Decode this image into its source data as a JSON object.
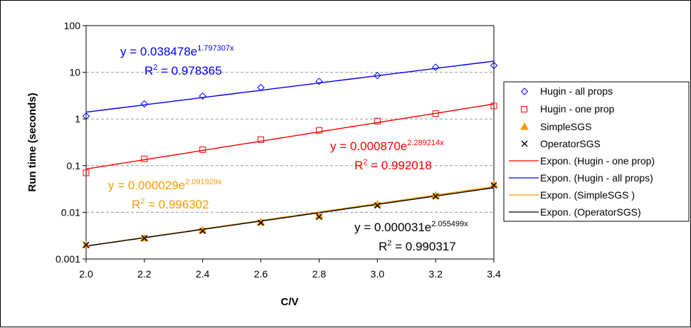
{
  "colors": {
    "all_props": "#0000ff",
    "one_prop": "#ff0000",
    "simple": "#ff9900",
    "operator": "#000000",
    "grid": "#999999"
  },
  "chart_data": {
    "type": "scatter",
    "xlabel": "C/V",
    "ylabel": "Run time (seconds)",
    "xlim": [
      2.0,
      3.4
    ],
    "ylim": [
      0.001,
      100
    ],
    "yscale": "log",
    "grid": "horizontal dashed",
    "legend_position": "right",
    "x_ticks": [
      "2.0",
      "2.2",
      "2.4",
      "2.6",
      "2.8",
      "3.0",
      "3.2",
      "3.4"
    ],
    "y_ticks": [
      "0.001",
      "0.01",
      "0.1",
      "1",
      "10",
      "100"
    ],
    "x": [
      2.0,
      2.2,
      2.4,
      2.6,
      2.8,
      3.0,
      3.2,
      3.4
    ],
    "series": [
      {
        "name": "Hugin - all props",
        "marker": "diamond",
        "color_key": "all_props",
        "values": [
          1.15,
          2.1,
          3.1,
          4.7,
          6.4,
          8.5,
          12.8,
          14.0
        ]
      },
      {
        "name": "Hugin - one prop",
        "marker": "square",
        "color_key": "one_prop",
        "values": [
          0.07,
          0.14,
          0.22,
          0.36,
          0.57,
          0.9,
          1.3,
          1.9
        ]
      },
      {
        "name": "SimpleSGS",
        "marker": "triangle",
        "color_key": "simple",
        "values": [
          0.002,
          0.0028,
          0.0042,
          0.0062,
          0.0085,
          0.015,
          0.023,
          0.04
        ]
      },
      {
        "name": "OperatorSGS",
        "marker": "x",
        "color_key": "operator",
        "values": [
          0.002,
          0.0028,
          0.004,
          0.006,
          0.008,
          0.014,
          0.022,
          0.038
        ]
      }
    ],
    "trendlines": [
      {
        "name": "Expon. (Hugin - one prop)",
        "color_key": "one_prop",
        "a": 0.00087,
        "b": 2.289214,
        "eq_coef": "y = 0.000870e",
        "eq_exp": "2.289214x",
        "r2_value": " = 0.992018"
      },
      {
        "name": "Expon. (Hugin - all props)",
        "color_key": "all_props",
        "a": 0.038478,
        "b": 1.797307,
        "eq_coef": "y = 0.038478e",
        "eq_exp": "1.797307x",
        "r2_value": " = 0.978365"
      },
      {
        "name": "Expon. (SimpleSGS )",
        "color_key": "simple",
        "a": 2.9e-05,
        "b": 2.091929,
        "eq_coef": "y = 0.000029e",
        "eq_exp": "2.091929x",
        "r2_value": " = 0.996302"
      },
      {
        "name": "Expon. (OperatorSGS)",
        "color_key": "operator",
        "a": 3.1e-05,
        "b": 2.055499,
        "eq_coef": "y = 0.000031e",
        "eq_exp": "2.055499x",
        "r2_value": " = 0.990317"
      }
    ],
    "r2_label": "R",
    "r2_sup": "2"
  }
}
